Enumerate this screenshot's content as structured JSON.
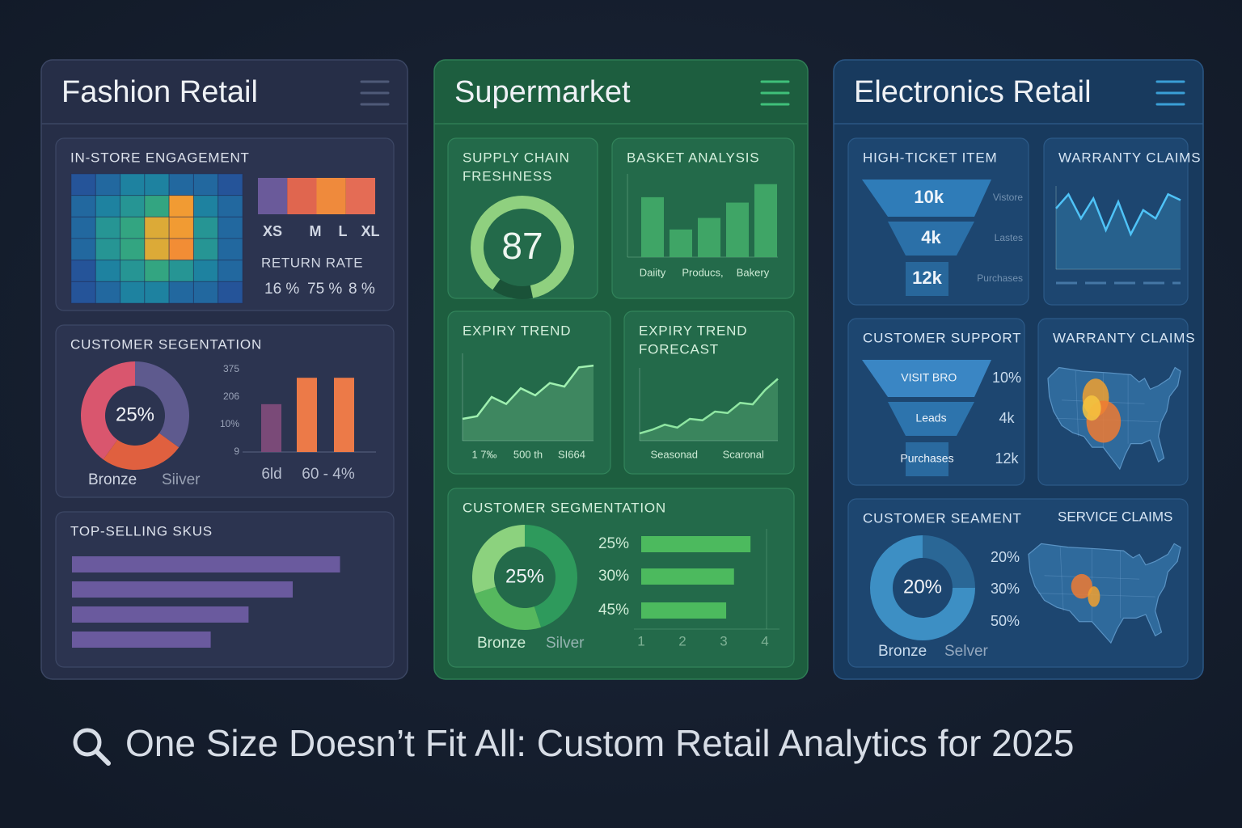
{
  "panels": [
    {
      "title": "Fashion Retail",
      "cards": [
        {
          "title": "IN-STORE ENGAGEMENT",
          "type": "heatmap",
          "values": [
            [
              1,
              2,
              3,
              3,
              2,
              2,
              1
            ],
            [
              2,
              3,
              4,
              5,
              9,
              3,
              2
            ],
            [
              2,
              4,
              5,
              8,
              9,
              4,
              2
            ],
            [
              2,
              4,
              5,
              8,
              10,
              4,
              2
            ],
            [
              1,
              3,
              4,
              5,
              4,
              3,
              2
            ],
            [
              1,
              2,
              3,
              3,
              2,
              2,
              1
            ]
          ],
          "zlim": [
            0,
            10
          ],
          "sizes": {
            "categories": [
              "XS",
              "M",
              "L",
              "XL"
            ],
            "colors": [
              "#6a5a9a",
              "#e0664f",
              "#ef8a3c",
              "#e46c55"
            ]
          },
          "return_rate": {
            "title": "RETURN RATE",
            "labels": [
              "16 %",
              "75 %",
              "8 %"
            ]
          }
        },
        {
          "title": "CUSTOMER SEGENTATION",
          "type": "donut",
          "center": "25%",
          "segments": [
            {
              "value": 35,
              "color": "#5e5a8e"
            },
            {
              "value": 25,
              "color": "#e0603f"
            },
            {
              "value": 40,
              "color": "#d9566e"
            }
          ],
          "legend": [
            "Bronze",
            "Siiver"
          ],
          "bars": {
            "values": [
              58,
              90,
              90
            ],
            "colors": [
              "#7a4a78",
              "#ec7a48",
              "#ec7a48"
            ],
            "ylim": [
              0,
              100
            ],
            "tick_labels": [
              "375",
              "206",
              "10%",
              "9"
            ],
            "x_labels": [
              "6ld",
              "60 - 4%"
            ]
          }
        },
        {
          "title": "TOP-SELLING SKUS",
          "type": "hbar",
          "values": [
            85,
            70,
            56,
            44
          ],
          "xlim": [
            0,
            100
          ],
          "color": "#6a5a9e"
        }
      ]
    },
    {
      "title": "Supermarket",
      "cards": [
        {
          "title": [
            "SUPPLY CHAIN",
            "FRESHNESS"
          ],
          "type": "gauge",
          "value": 87,
          "range": [
            0,
            100
          ],
          "color": "#8fd07f"
        },
        {
          "title": "BASKET ANALYSIS",
          "type": "bar",
          "values": [
            78,
            36,
            51,
            71,
            95
          ],
          "ylim": [
            0,
            100
          ],
          "color": "#3fa566",
          "x_labels": [
            "Daiity",
            "Producs,",
            "Bakery"
          ]
        },
        {
          "title": "EXPIRY TREND",
          "type": "line",
          "values": [
            25,
            28,
            50,
            42,
            60,
            52,
            66,
            62,
            84,
            86
          ],
          "ylim": [
            0,
            100
          ],
          "color": "#9ff0b0",
          "x_labels": [
            "1 7‰",
            "500 th",
            "SI664"
          ]
        },
        {
          "title": [
            "EXPIRY TREND",
            "FORECAST"
          ],
          "type": "line",
          "values": [
            10,
            15,
            22,
            18,
            30,
            28,
            40,
            38,
            52,
            50,
            70,
            85
          ],
          "ylim": [
            0,
            100
          ],
          "color": "#8fe6a2",
          "x_labels": [
            "Seasonad",
            "Scaronal"
          ]
        },
        {
          "title": "CUSTOMER SEGMENTATION",
          "type": "donut",
          "center": "25%",
          "segments": [
            {
              "value": 45,
              "color": "#2e9a5c"
            },
            {
              "value": 25,
              "color": "#56b85e"
            },
            {
              "value": 30,
              "color": "#8cd27e"
            }
          ],
          "legend": [
            "Bronze",
            "Silver"
          ],
          "hbars": {
            "categories": [
              "25%",
              "30%",
              "45%"
            ],
            "values": [
              3.65,
              3.25,
              3.06
            ],
            "xlim": [
              1,
              4
            ],
            "xticks": [
              1,
              2,
              3,
              4
            ],
            "color": "#4cba5e"
          }
        }
      ]
    },
    {
      "title": "Electronics Retail",
      "cards": [
        {
          "title": "HIGH-TICKET ITEM",
          "type": "funnel",
          "stages": [
            "10k",
            "4k",
            "12k"
          ],
          "labels": [
            "Vistore",
            "Lastes",
            "Purchases"
          ]
        },
        {
          "title": "WARRANTY CLAIMS",
          "type": "line",
          "values": [
            73,
            90,
            61,
            85,
            47,
            81,
            42,
            71,
            61,
            90,
            83
          ],
          "ylim": [
            0,
            100
          ],
          "color": "#4fc3f7"
        },
        {
          "title": "CUSTOMER SUPPORT",
          "type": "funnel",
          "stages": [
            "VISIT BRO",
            "Leads",
            "Purchases"
          ],
          "labels": [
            "10%",
            "4k",
            "12k"
          ]
        },
        {
          "title": "WARRANTY CLAIMS",
          "type": "map"
        },
        {
          "title": "CUSTOMER SEAMENT",
          "type": "donut",
          "center": "20%",
          "segments": [
            {
              "value": 25,
              "color": "#2a6796"
            },
            {
              "value": 75,
              "color": "#3d8fc4"
            }
          ],
          "legend": [
            "Bronze",
            "Selver"
          ],
          "side_labels": [
            "20%",
            "30%",
            "50%"
          ],
          "map": {
            "title": "SERVICE CLAIMS"
          }
        }
      ]
    }
  ],
  "caption": "One Size Doesn’t Fit All: Custom Retail Analytics for 2025"
}
